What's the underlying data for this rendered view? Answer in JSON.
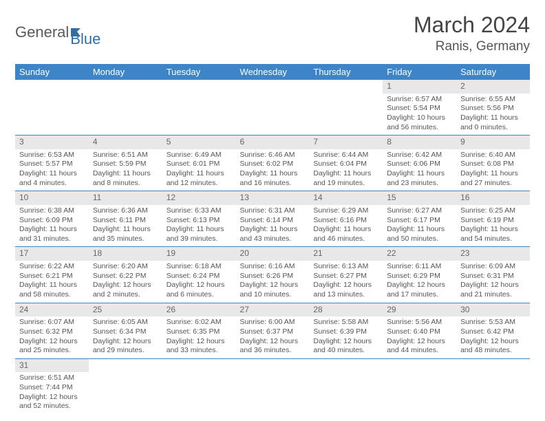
{
  "logo": {
    "text1": "General",
    "text2": "Blue"
  },
  "header": {
    "month": "March 2024",
    "location": "Ranis, Germany"
  },
  "calendar": {
    "day_headers": [
      "Sunday",
      "Monday",
      "Tuesday",
      "Wednesday",
      "Thursday",
      "Friday",
      "Saturday"
    ],
    "header_bg": "#3d85c6",
    "header_fg": "#ffffff",
    "daynum_bg": "#e8e8e8",
    "border_color": "#3d85c6",
    "weeks": [
      [
        null,
        null,
        null,
        null,
        null,
        {
          "d": "1",
          "sr": "Sunrise: 6:57 AM",
          "ss": "Sunset: 5:54 PM",
          "dl1": "Daylight: 10 hours",
          "dl2": "and 56 minutes."
        },
        {
          "d": "2",
          "sr": "Sunrise: 6:55 AM",
          "ss": "Sunset: 5:56 PM",
          "dl1": "Daylight: 11 hours",
          "dl2": "and 0 minutes."
        }
      ],
      [
        {
          "d": "3",
          "sr": "Sunrise: 6:53 AM",
          "ss": "Sunset: 5:57 PM",
          "dl1": "Daylight: 11 hours",
          "dl2": "and 4 minutes."
        },
        {
          "d": "4",
          "sr": "Sunrise: 6:51 AM",
          "ss": "Sunset: 5:59 PM",
          "dl1": "Daylight: 11 hours",
          "dl2": "and 8 minutes."
        },
        {
          "d": "5",
          "sr": "Sunrise: 6:49 AM",
          "ss": "Sunset: 6:01 PM",
          "dl1": "Daylight: 11 hours",
          "dl2": "and 12 minutes."
        },
        {
          "d": "6",
          "sr": "Sunrise: 6:46 AM",
          "ss": "Sunset: 6:02 PM",
          "dl1": "Daylight: 11 hours",
          "dl2": "and 16 minutes."
        },
        {
          "d": "7",
          "sr": "Sunrise: 6:44 AM",
          "ss": "Sunset: 6:04 PM",
          "dl1": "Daylight: 11 hours",
          "dl2": "and 19 minutes."
        },
        {
          "d": "8",
          "sr": "Sunrise: 6:42 AM",
          "ss": "Sunset: 6:06 PM",
          "dl1": "Daylight: 11 hours",
          "dl2": "and 23 minutes."
        },
        {
          "d": "9",
          "sr": "Sunrise: 6:40 AM",
          "ss": "Sunset: 6:08 PM",
          "dl1": "Daylight: 11 hours",
          "dl2": "and 27 minutes."
        }
      ],
      [
        {
          "d": "10",
          "sr": "Sunrise: 6:38 AM",
          "ss": "Sunset: 6:09 PM",
          "dl1": "Daylight: 11 hours",
          "dl2": "and 31 minutes."
        },
        {
          "d": "11",
          "sr": "Sunrise: 6:36 AM",
          "ss": "Sunset: 6:11 PM",
          "dl1": "Daylight: 11 hours",
          "dl2": "and 35 minutes."
        },
        {
          "d": "12",
          "sr": "Sunrise: 6:33 AM",
          "ss": "Sunset: 6:13 PM",
          "dl1": "Daylight: 11 hours",
          "dl2": "and 39 minutes."
        },
        {
          "d": "13",
          "sr": "Sunrise: 6:31 AM",
          "ss": "Sunset: 6:14 PM",
          "dl1": "Daylight: 11 hours",
          "dl2": "and 43 minutes."
        },
        {
          "d": "14",
          "sr": "Sunrise: 6:29 AM",
          "ss": "Sunset: 6:16 PM",
          "dl1": "Daylight: 11 hours",
          "dl2": "and 46 minutes."
        },
        {
          "d": "15",
          "sr": "Sunrise: 6:27 AM",
          "ss": "Sunset: 6:17 PM",
          "dl1": "Daylight: 11 hours",
          "dl2": "and 50 minutes."
        },
        {
          "d": "16",
          "sr": "Sunrise: 6:25 AM",
          "ss": "Sunset: 6:19 PM",
          "dl1": "Daylight: 11 hours",
          "dl2": "and 54 minutes."
        }
      ],
      [
        {
          "d": "17",
          "sr": "Sunrise: 6:22 AM",
          "ss": "Sunset: 6:21 PM",
          "dl1": "Daylight: 11 hours",
          "dl2": "and 58 minutes."
        },
        {
          "d": "18",
          "sr": "Sunrise: 6:20 AM",
          "ss": "Sunset: 6:22 PM",
          "dl1": "Daylight: 12 hours",
          "dl2": "and 2 minutes."
        },
        {
          "d": "19",
          "sr": "Sunrise: 6:18 AM",
          "ss": "Sunset: 6:24 PM",
          "dl1": "Daylight: 12 hours",
          "dl2": "and 6 minutes."
        },
        {
          "d": "20",
          "sr": "Sunrise: 6:16 AM",
          "ss": "Sunset: 6:26 PM",
          "dl1": "Daylight: 12 hours",
          "dl2": "and 10 minutes."
        },
        {
          "d": "21",
          "sr": "Sunrise: 6:13 AM",
          "ss": "Sunset: 6:27 PM",
          "dl1": "Daylight: 12 hours",
          "dl2": "and 13 minutes."
        },
        {
          "d": "22",
          "sr": "Sunrise: 6:11 AM",
          "ss": "Sunset: 6:29 PM",
          "dl1": "Daylight: 12 hours",
          "dl2": "and 17 minutes."
        },
        {
          "d": "23",
          "sr": "Sunrise: 6:09 AM",
          "ss": "Sunset: 6:31 PM",
          "dl1": "Daylight: 12 hours",
          "dl2": "and 21 minutes."
        }
      ],
      [
        {
          "d": "24",
          "sr": "Sunrise: 6:07 AM",
          "ss": "Sunset: 6:32 PM",
          "dl1": "Daylight: 12 hours",
          "dl2": "and 25 minutes."
        },
        {
          "d": "25",
          "sr": "Sunrise: 6:05 AM",
          "ss": "Sunset: 6:34 PM",
          "dl1": "Daylight: 12 hours",
          "dl2": "and 29 minutes."
        },
        {
          "d": "26",
          "sr": "Sunrise: 6:02 AM",
          "ss": "Sunset: 6:35 PM",
          "dl1": "Daylight: 12 hours",
          "dl2": "and 33 minutes."
        },
        {
          "d": "27",
          "sr": "Sunrise: 6:00 AM",
          "ss": "Sunset: 6:37 PM",
          "dl1": "Daylight: 12 hours",
          "dl2": "and 36 minutes."
        },
        {
          "d": "28",
          "sr": "Sunrise: 5:58 AM",
          "ss": "Sunset: 6:39 PM",
          "dl1": "Daylight: 12 hours",
          "dl2": "and 40 minutes."
        },
        {
          "d": "29",
          "sr": "Sunrise: 5:56 AM",
          "ss": "Sunset: 6:40 PM",
          "dl1": "Daylight: 12 hours",
          "dl2": "and 44 minutes."
        },
        {
          "d": "30",
          "sr": "Sunrise: 5:53 AM",
          "ss": "Sunset: 6:42 PM",
          "dl1": "Daylight: 12 hours",
          "dl2": "and 48 minutes."
        }
      ],
      [
        {
          "d": "31",
          "sr": "Sunrise: 6:51 AM",
          "ss": "Sunset: 7:44 PM",
          "dl1": "Daylight: 12 hours",
          "dl2": "and 52 minutes."
        },
        null,
        null,
        null,
        null,
        null,
        null
      ]
    ]
  }
}
